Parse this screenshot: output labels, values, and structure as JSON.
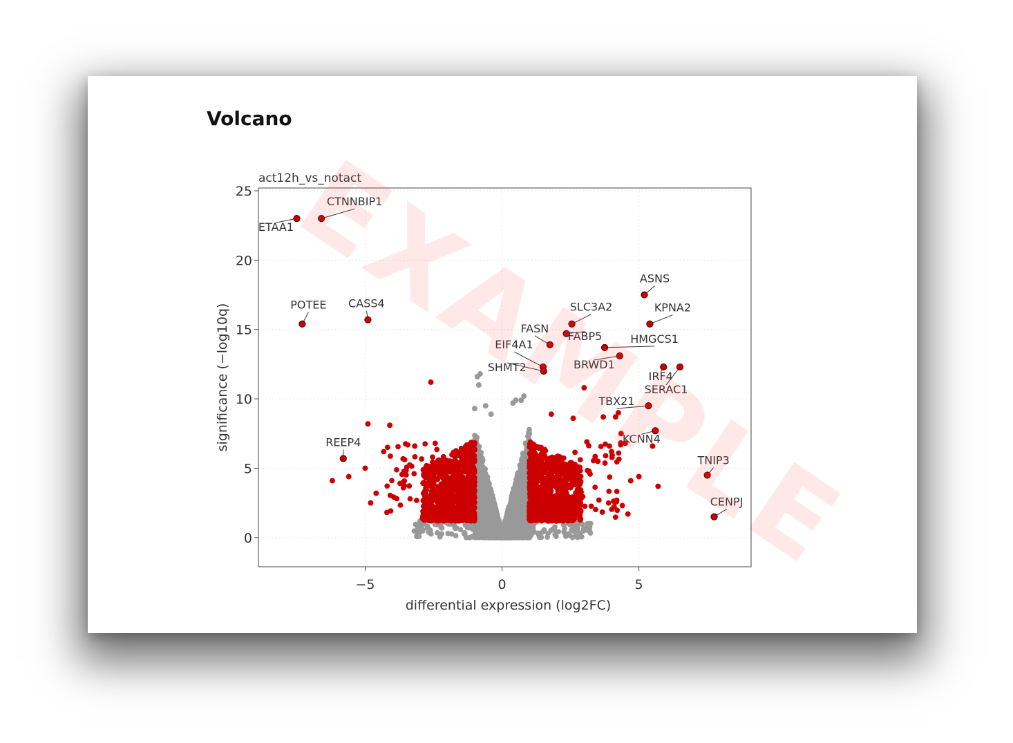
{
  "page": {
    "title": "Volcano",
    "watermark": "EXAMPLE"
  },
  "colors": {
    "significant": "#cc0000",
    "not_significant": "#999999",
    "grid": "#e6e6e6",
    "watermark": "#ff5050"
  },
  "chart_data": {
    "type": "scatter",
    "subtitle": "act12h_vs_notact",
    "xlabel": "differential expression (log2FC)",
    "ylabel": "significance (−log10q)",
    "xlim": [
      -8.9,
      9.1
    ],
    "ylim": [
      -2.1,
      25.2
    ],
    "xticks": [
      -5,
      0,
      5
    ],
    "xtick_labels": [
      "−5",
      "0",
      "5"
    ],
    "yticks": [
      0,
      5,
      10,
      15,
      20,
      25
    ],
    "ytick_labels": [
      "0",
      "5",
      "10",
      "15",
      "20",
      "25"
    ],
    "grid": true,
    "legend": "none",
    "significance_threshold": {
      "log2fc": 1.0
    },
    "labeled_points": [
      {
        "gene": "CTNNBIP1",
        "x": -6.6,
        "y": 23.0
      },
      {
        "gene": "ETAA1",
        "x": -7.5,
        "y": 23.0
      },
      {
        "gene": "POTEE",
        "x": -7.3,
        "y": 15.4
      },
      {
        "gene": "CASS4",
        "x": -4.9,
        "y": 15.7
      },
      {
        "gene": "REEP4",
        "x": -5.8,
        "y": 5.7
      },
      {
        "gene": "ASNS",
        "x": 5.2,
        "y": 17.5
      },
      {
        "gene": "KPNA2",
        "x": 5.4,
        "y": 15.4
      },
      {
        "gene": "SLC3A2",
        "x": 2.55,
        "y": 15.4
      },
      {
        "gene": "FABP5",
        "x": 2.35,
        "y": 14.7
      },
      {
        "gene": "FASN",
        "x": 1.75,
        "y": 13.9
      },
      {
        "gene": "HMGCS1",
        "x": 3.75,
        "y": 13.7
      },
      {
        "gene": "EIF4A1",
        "x": 1.5,
        "y": 12.3
      },
      {
        "gene": "SHMT2",
        "x": 1.52,
        "y": 12.0
      },
      {
        "gene": "BRWD1",
        "x": 4.3,
        "y": 13.1
      },
      {
        "gene": "IRF4",
        "x": 5.9,
        "y": 12.3
      },
      {
        "gene": "SERAC1",
        "x": 6.5,
        "y": 12.3
      },
      {
        "gene": "TBX21",
        "x": 5.35,
        "y": 9.5
      },
      {
        "gene": "KCNN4",
        "x": 5.6,
        "y": 7.7
      },
      {
        "gene": "TNIP3",
        "x": 7.5,
        "y": 4.5
      },
      {
        "gene": "CENPJ",
        "x": 7.75,
        "y": 1.5
      }
    ],
    "highlighted_points": [
      {
        "x": -2.6,
        "y": 11.2
      },
      {
        "x": -4.9,
        "y": 8.2
      },
      {
        "x": -4.1,
        "y": 8.1
      },
      {
        "x": -6.2,
        "y": 4.1
      },
      {
        "x": -5.6,
        "y": 4.4
      },
      {
        "x": -5.0,
        "y": 5.0
      },
      {
        "x": -4.6,
        "y": 3.2
      },
      {
        "x": -4.8,
        "y": 2.5
      },
      {
        "x": 1.8,
        "y": 8.9
      },
      {
        "x": 2.6,
        "y": 8.6
      },
      {
        "x": 3.0,
        "y": 10.8
      },
      {
        "x": 3.7,
        "y": 8.7
      },
      {
        "x": 4.15,
        "y": 8.7
      },
      {
        "x": 4.25,
        "y": 9.0
      },
      {
        "x": 4.35,
        "y": 7.5
      },
      {
        "x": 4.5,
        "y": 6.8
      },
      {
        "x": 4.0,
        "y": 6.2
      },
      {
        "x": 5.0,
        "y": 4.4
      },
      {
        "x": 5.5,
        "y": 6.6
      },
      {
        "x": 5.7,
        "y": 3.7
      },
      {
        "x": 4.7,
        "y": 4.1
      },
      {
        "x": 4.6,
        "y": 1.7
      },
      {
        "x": 3.1,
        "y": 6.9
      },
      {
        "x": 3.5,
        "y": 5.5
      }
    ],
    "gray_outliers": [
      {
        "x": -0.8,
        "y": 11.8
      },
      {
        "x": -0.9,
        "y": 11.6
      },
      {
        "x": -0.85,
        "y": 11.0
      },
      {
        "x": 0.4,
        "y": 9.7
      },
      {
        "x": 0.5,
        "y": 9.9
      },
      {
        "x": 0.8,
        "y": 10.2
      },
      {
        "x": 0.7,
        "y": 9.9
      },
      {
        "x": -0.6,
        "y": 9.5
      },
      {
        "x": -0.4,
        "y": 8.9
      },
      {
        "x": -1.0,
        "y": 9.3
      }
    ],
    "background_points": {
      "significant": {
        "count": 1600,
        "abs_log2fc_min": 1.0,
        "abs_log2fc_max": 2.9,
        "y_min": 1.2,
        "y_max": 7.0
      },
      "not_significant": {
        "count": 2600,
        "abs_log2fc_max": 1.0,
        "y_min": 0.0,
        "y_max": 9.5
      }
    }
  }
}
